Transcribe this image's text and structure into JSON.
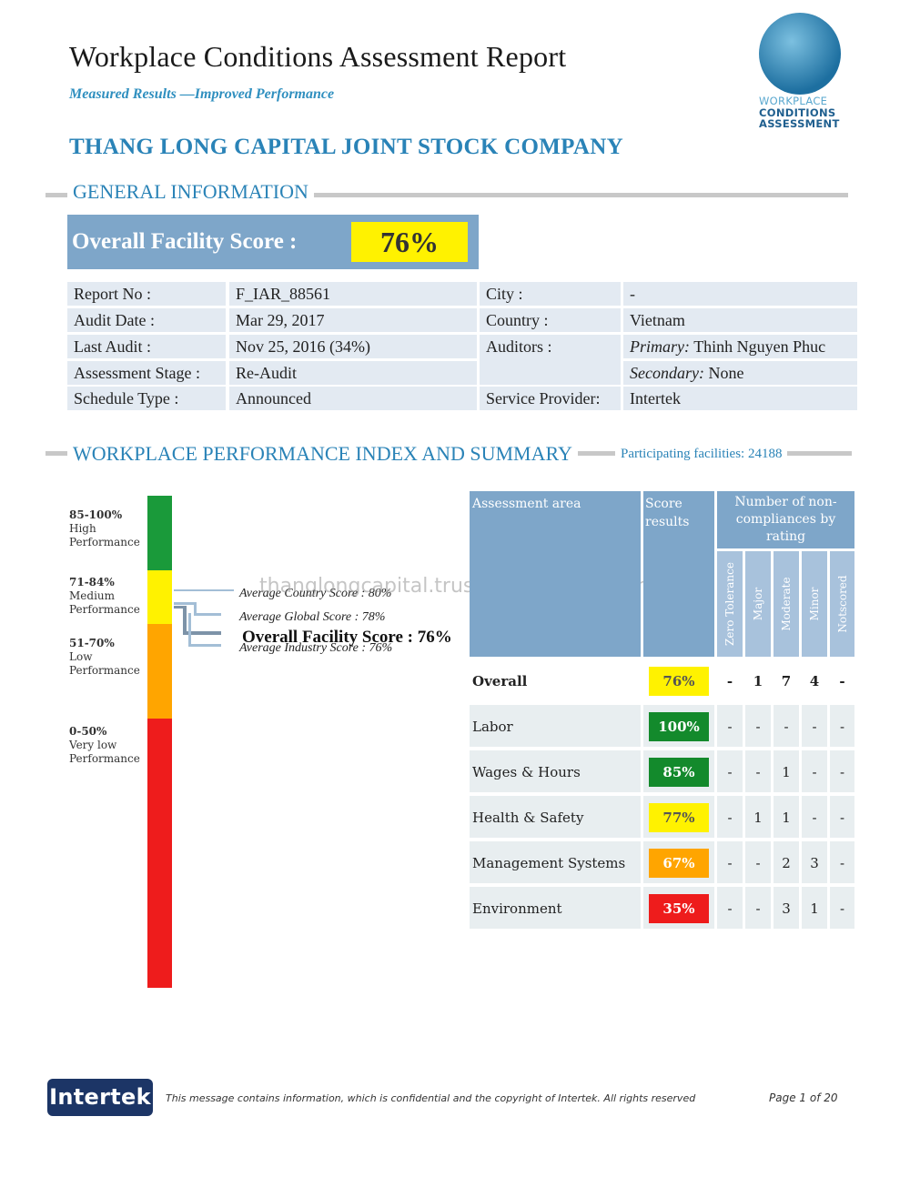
{
  "header": {
    "title": "Workplace Conditions Assessment Report",
    "subtitle": "Measured Results —Improved Performance",
    "logo_lines": [
      "WORKPLACE",
      "CONDITIONS",
      "ASSESSMENT"
    ]
  },
  "company": "THANG LONG CAPITAL JOINT STOCK COMPANY",
  "general": {
    "heading": "GENERAL INFORMATION",
    "score_label": "Overall Facility Score :",
    "score_value": "76%",
    "fields": {
      "report_no_label": "Report No :",
      "report_no": "F_IAR_88561",
      "audit_date_label": "Audit Date :",
      "audit_date": "Mar 29, 2017",
      "last_audit_label": "Last Audit :",
      "last_audit": "Nov 25, 2016 (34%)",
      "stage_label": "Assessment Stage :",
      "stage": "Re-Audit",
      "schedule_label": "Schedule Type :",
      "schedule": "Announced",
      "city_label": "City :",
      "city": "-",
      "country_label": "Country :",
      "country": "Vietnam",
      "auditors_label": "Auditors :",
      "primary_label": "Primary:",
      "primary": "Thinh Nguyen Phuc",
      "secondary_label": "Secondary:",
      "secondary": "None",
      "provider_label": "Service Provider:",
      "provider": "Intertek"
    }
  },
  "performance": {
    "heading": "WORKPLACE PERFORMANCE INDEX AND SUMMARY",
    "participating": "Participating facilities: 24188",
    "legend": [
      {
        "range": "85-100%",
        "line1": "High",
        "line2": "Performance",
        "color": "#1a9a3a"
      },
      {
        "range": "71-84%",
        "line1": "Medium",
        "line2": "Performance",
        "color": "#fff200"
      },
      {
        "range": "51-70%",
        "line1": "Low",
        "line2": "Performance",
        "color": "#ffa500"
      },
      {
        "range": "0-50%",
        "line1": "Very low",
        "line2": "Performance",
        "color": "#ee1c1c"
      }
    ],
    "avg_country": "Average Country Score : 80%",
    "avg_global": "Average Global Score : 78%",
    "avg_industry": "Average Industry Score : 76%",
    "overall_marker": "Overall Facility Score : 76%",
    "watermark": "thanglongcapital.trustpass.alibaba.com"
  },
  "table": {
    "col_area": "Assessment area",
    "col_score": "Score results",
    "col_nc": "Number of non-compliances by rating",
    "ratings": [
      "Zero Tolerance",
      "Major",
      "Moderate",
      "Minor",
      "Notscored"
    ],
    "rows": [
      {
        "area": "Overall",
        "score": "76%",
        "color": "#fff200",
        "text_color": "#555555",
        "nc": [
          "-",
          "1",
          "7",
          "4",
          "-"
        ]
      },
      {
        "area": "Labor",
        "score": "100%",
        "color": "#138a2c",
        "text_color": "#ffffff",
        "nc": [
          "-",
          "-",
          "-",
          "-",
          "-"
        ]
      },
      {
        "area": "Wages & Hours",
        "score": "85%",
        "color": "#138a2c",
        "text_color": "#ffffff",
        "nc": [
          "-",
          "-",
          "1",
          "-",
          "-"
        ]
      },
      {
        "area": "Health & Safety",
        "score": "77%",
        "color": "#fff200",
        "text_color": "#555555",
        "nc": [
          "-",
          "1",
          "1",
          "-",
          "-"
        ]
      },
      {
        "area": "Management Systems",
        "score": "67%",
        "color": "#ffa500",
        "text_color": "#ffffff",
        "nc": [
          "-",
          "-",
          "2",
          "3",
          "-"
        ]
      },
      {
        "area": "Environment",
        "score": "35%",
        "color": "#ee1c1c",
        "text_color": "#ffffff",
        "nc": [
          "-",
          "-",
          "3",
          "1",
          "-"
        ]
      }
    ]
  },
  "footer": {
    "brand": "Intertek",
    "note": "This message contains information, which is confidential and the copyright of Intertek. All rights reserved",
    "page": "Page 1 of 20"
  }
}
